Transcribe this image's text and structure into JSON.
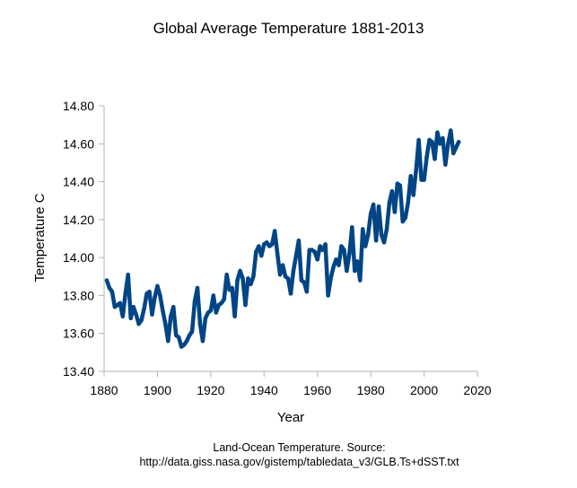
{
  "chart_data": {
    "type": "line",
    "title": "Global Average Temperature 1881-2013",
    "xlabel": "Year",
    "ylabel": "Temperature C",
    "xlim": [
      1880,
      2020
    ],
    "ylim": [
      13.4,
      14.8
    ],
    "xticks": [
      "1880",
      "1900",
      "1920",
      "1940",
      "1960",
      "1980",
      "2000",
      "2020"
    ],
    "yticks": [
      "13.40",
      "13.60",
      "13.80",
      "14.00",
      "14.20",
      "14.40",
      "14.60",
      "14.80"
    ],
    "grid": false,
    "legend": "none",
    "line_color": "#004586",
    "x_start": 1881,
    "series": [
      {
        "name": "Global Average Temperature",
        "values": [
          13.88,
          13.84,
          13.82,
          13.74,
          13.75,
          13.76,
          13.69,
          13.81,
          13.91,
          13.68,
          13.74,
          13.7,
          13.65,
          13.67,
          13.73,
          13.81,
          13.82,
          13.7,
          13.79,
          13.85,
          13.8,
          13.72,
          13.65,
          13.56,
          13.69,
          13.74,
          13.59,
          13.58,
          13.53,
          13.54,
          13.56,
          13.59,
          13.61,
          13.77,
          13.84,
          13.65,
          13.56,
          13.68,
          13.71,
          13.72,
          13.8,
          13.71,
          13.75,
          13.76,
          13.78,
          13.91,
          13.83,
          13.84,
          13.69,
          13.88,
          13.93,
          13.89,
          13.75,
          13.89,
          13.86,
          13.9,
          14.03,
          14.06,
          14.01,
          14.07,
          14.08,
          14.06,
          14.07,
          14.14,
          14.02,
          13.91,
          13.96,
          13.9,
          13.89,
          13.81,
          13.93,
          14.01,
          14.09,
          13.88,
          13.87,
          13.82,
          14.04,
          14.04,
          14.03,
          13.99,
          14.06,
          14.04,
          14.07,
          13.8,
          13.89,
          13.95,
          13.99,
          13.96,
          14.06,
          14.04,
          13.93,
          14.02,
          14.16,
          13.93,
          13.98,
          13.88,
          14.15,
          14.06,
          14.12,
          14.23,
          14.28,
          14.09,
          14.27,
          14.12,
          14.08,
          14.15,
          14.29,
          14.35,
          14.24,
          14.39,
          14.38,
          14.19,
          14.21,
          14.29,
          14.43,
          14.33,
          14.46,
          14.62,
          14.41,
          14.41,
          14.53,
          14.62,
          14.61,
          14.52,
          14.66,
          14.6,
          14.63,
          14.49,
          14.6,
          14.67,
          14.55,
          14.58,
          14.61
        ]
      }
    ]
  },
  "caption": {
    "line1": "Land-Ocean Temperature. Source:",
    "line2": "http://data.giss.nasa.gov/gistemp/tabledata_v3/GLB.Ts+dSST.txt"
  }
}
